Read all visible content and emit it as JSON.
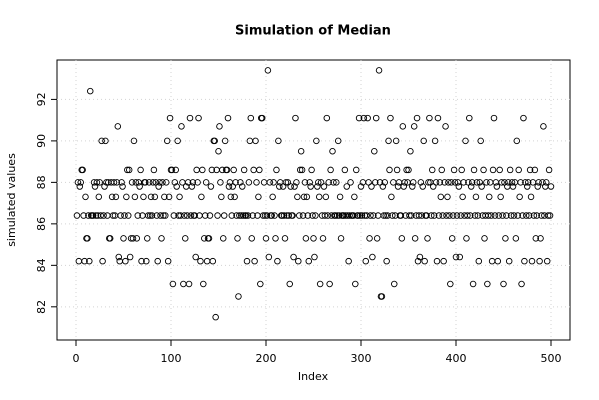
{
  "chart_data": {
    "type": "scatter",
    "title": "Simulation of Median",
    "x_label": "Index",
    "y_label": "simulated values",
    "color": "#000000",
    "grid": true,
    "xlim": [
      -20,
      520
    ],
    "xticks": [
      0,
      100,
      200,
      300,
      400,
      500
    ],
    "ylim": [
      80.4,
      93.9
    ],
    "yticks": [
      82,
      84,
      86,
      88,
      90,
      92
    ],
    "x": [
      1,
      2,
      3,
      4,
      5,
      6,
      7,
      8,
      9,
      10,
      11,
      12,
      13,
      14,
      15,
      16,
      17,
      18,
      19,
      20,
      21,
      22,
      23,
      24,
      25,
      26,
      27,
      28,
      29,
      30,
      31,
      32,
      33,
      34,
      35,
      36,
      37,
      38,
      39,
      40,
      41,
      42,
      43,
      44,
      45,
      46,
      47,
      48,
      49,
      50,
      51,
      52,
      53,
      54,
      55,
      56,
      57,
      58,
      59,
      60,
      61,
      62,
      63,
      64,
      65,
      66,
      67,
      68,
      69,
      70,
      71,
      72,
      73,
      74,
      75,
      76,
      77,
      78,
      79,
      80,
      81,
      82,
      83,
      84,
      85,
      86,
      87,
      88,
      89,
      90,
      91,
      92,
      93,
      94,
      95,
      96,
      97,
      98,
      99,
      100,
      101,
      102,
      103,
      104,
      105,
      106,
      107,
      108,
      109,
      110,
      111,
      112,
      113,
      114,
      115,
      116,
      117,
      118,
      119,
      120,
      121,
      122,
      123,
      124,
      125,
      126,
      127,
      128,
      129,
      130,
      131,
      132,
      133,
      134,
      135,
      136,
      137,
      138,
      139,
      140,
      141,
      142,
      143,
      144,
      145,
      146,
      147,
      148,
      149,
      150,
      151,
      152,
      153,
      154,
      155,
      156,
      157,
      158,
      159,
      160,
      161,
      162,
      163,
      164,
      165,
      166,
      167,
      168,
      169,
      170,
      171,
      172,
      173,
      174,
      175,
      176,
      177,
      178,
      179,
      180,
      181,
      182,
      183,
      184,
      185,
      186,
      187,
      188,
      189,
      190,
      191,
      192,
      193,
      194,
      195,
      196,
      197,
      198,
      199,
      200,
      201,
      202,
      203,
      204,
      205,
      206,
      207,
      208,
      209,
      210,
      211,
      212,
      213,
      214,
      215,
      216,
      217,
      218,
      219,
      220,
      221,
      222,
      223,
      224,
      225,
      226,
      227,
      228,
      229,
      230,
      231,
      232,
      233,
      234,
      235,
      236,
      237,
      238,
      239,
      240,
      241,
      242,
      243,
      244,
      245,
      246,
      247,
      248,
      249,
      250,
      251,
      252,
      253,
      254,
      255,
      256,
      257,
      258,
      259,
      260,
      261,
      262,
      263,
      264,
      265,
      266,
      267,
      268,
      269,
      270,
      271,
      272,
      273,
      274,
      275,
      276,
      277,
      278,
      279,
      280,
      281,
      282,
      283,
      284,
      285,
      286,
      287,
      288,
      289,
      290,
      291,
      292,
      293,
      294,
      295,
      296,
      297,
      298,
      299,
      300,
      301,
      302,
      303,
      304,
      305,
      306,
      307,
      308,
      309,
      310,
      311,
      312,
      313,
      314,
      315,
      316,
      317,
      318,
      319,
      320,
      321,
      322,
      323,
      324,
      325,
      326,
      327,
      328,
      329,
      330,
      331,
      332,
      333,
      334,
      335,
      336,
      337,
      338,
      339,
      340,
      341,
      342,
      343,
      344,
      345,
      346,
      347,
      348,
      349,
      350,
      351,
      352,
      353,
      354,
      355,
      356,
      357,
      358,
      359,
      360,
      361,
      362,
      363,
      364,
      365,
      366,
      367,
      368,
      369,
      370,
      371,
      372,
      373,
      374,
      375,
      376,
      377,
      378,
      379,
      380,
      381,
      382,
      383,
      384,
      385,
      386,
      387,
      388,
      389,
      390,
      391,
      392,
      393,
      394,
      395,
      396,
      397,
      398,
      399,
      400,
      401,
      402,
      403,
      404,
      405,
      406,
      407,
      408,
      409,
      410,
      411,
      412,
      413,
      414,
      415,
      416,
      417,
      418,
      419,
      420,
      421,
      422,
      423,
      424,
      425,
      426,
      427,
      428,
      429,
      430,
      431,
      432,
      433,
      434,
      435,
      436,
      437,
      438,
      439,
      440,
      441,
      442,
      443,
      444,
      445,
      446,
      447,
      448,
      449,
      450,
      451,
      452,
      453,
      454,
      455,
      456,
      457,
      458,
      459,
      460,
      461,
      462,
      463,
      464,
      465,
      466,
      467,
      468,
      469,
      470,
      471,
      472,
      473,
      474,
      475,
      476,
      477,
      478,
      479,
      480,
      481,
      482,
      483,
      484,
      485,
      486,
      487,
      488,
      489,
      490,
      491,
      492,
      493,
      494,
      495,
      496,
      497,
      498,
      499,
      500
    ],
    "values": [
      86.4,
      88.0,
      84.2,
      87.8,
      88.0,
      88.6,
      88.6,
      86.4,
      84.2,
      87.3,
      85.3,
      85.3,
      86.4,
      84.2,
      92.4,
      86.4,
      86.4,
      86.4,
      88.0,
      87.8,
      86.4,
      88.0,
      86.4,
      87.3,
      88.0,
      86.4,
      90.0,
      84.2,
      86.4,
      87.8,
      90.0,
      88.0,
      86.4,
      88.0,
      85.3,
      85.3,
      88.0,
      87.3,
      86.4,
      88.0,
      86.4,
      87.3,
      88.0,
      90.7,
      84.4,
      84.2,
      86.4,
      88.0,
      87.8,
      85.3,
      86.4,
      84.2,
      87.3,
      88.6,
      86.4,
      88.6,
      84.4,
      85.3,
      88.0,
      85.3,
      90.0,
      87.3,
      88.0,
      85.3,
      86.4,
      88.0,
      87.8,
      88.6,
      84.2,
      86.4,
      87.3,
      88.0,
      88.0,
      84.2,
      85.3,
      86.4,
      88.0,
      86.4,
      87.3,
      86.4,
      88.0,
      88.6,
      87.3,
      88.0,
      86.4,
      84.2,
      87.8,
      88.0,
      86.4,
      85.3,
      88.0,
      86.4,
      87.3,
      86.4,
      88.0,
      90.0,
      84.2,
      87.3,
      91.1,
      88.6,
      88.6,
      83.1,
      86.4,
      88.0,
      88.6,
      87.8,
      90.0,
      86.4,
      87.3,
      86.4,
      90.7,
      88.0,
      83.1,
      86.4,
      85.3,
      87.8,
      86.4,
      88.0,
      83.1,
      91.1,
      86.4,
      87.8,
      88.0,
      86.4,
      86.4,
      84.4,
      88.6,
      88.0,
      91.1,
      86.4,
      84.2,
      87.3,
      88.6,
      83.1,
      85.3,
      86.4,
      88.0,
      84.2,
      85.3,
      85.3,
      86.4,
      87.8,
      88.6,
      84.2,
      90.0,
      90.0,
      81.5,
      88.6,
      86.4,
      89.5,
      90.7,
      88.0,
      87.3,
      88.6,
      85.3,
      86.4,
      90.0,
      88.6,
      88.6,
      91.1,
      87.8,
      88.0,
      87.3,
      86.4,
      87.8,
      88.6,
      87.3,
      88.0,
      86.4,
      85.3,
      82.5,
      86.4,
      88.0,
      86.4,
      87.8,
      86.4,
      88.6,
      86.4,
      86.4,
      84.2,
      86.4,
      88.0,
      90.0,
      91.1,
      85.3,
      86.4,
      88.6,
      84.2,
      90.0,
      88.0,
      86.4,
      87.3,
      88.6,
      83.1,
      91.1,
      91.1,
      86.4,
      88.0,
      86.4,
      85.3,
      86.4,
      93.4,
      84.4,
      88.0,
      86.4,
      86.4,
      87.3,
      88.0,
      86.4,
      85.3,
      88.6,
      84.2,
      90.0,
      87.8,
      88.0,
      86.4,
      86.4,
      87.8,
      86.4,
      85.3,
      88.0,
      86.4,
      88.0,
      86.4,
      83.1,
      87.8,
      86.4,
      86.4,
      84.4,
      87.8,
      91.1,
      88.0,
      87.3,
      84.2,
      86.4,
      88.6,
      89.5,
      88.6,
      86.4,
      87.3,
      88.0,
      85.3,
      87.3,
      86.4,
      84.2,
      88.0,
      87.8,
      88.6,
      86.4,
      85.3,
      84.4,
      86.4,
      90.0,
      87.8,
      88.0,
      87.3,
      83.1,
      88.0,
      86.4,
      85.3,
      87.8,
      86.4,
      87.3,
      91.1,
      86.4,
      88.0,
      83.1,
      88.6,
      86.4,
      89.5,
      88.0,
      86.4,
      86.4,
      88.0,
      86.4,
      90.0,
      86.4,
      87.3,
      85.3,
      86.4,
      86.4,
      86.4,
      88.6,
      86.4,
      87.8,
      86.4,
      84.2,
      86.4,
      88.0,
      86.4,
      86.4,
      86.4,
      87.3,
      83.1,
      88.6,
      86.4,
      86.4,
      91.1,
      86.4,
      87.8,
      86.4,
      88.0,
      91.1,
      86.4,
      84.2,
      86.4,
      91.1,
      88.0,
      85.3,
      86.4,
      87.8,
      84.4,
      86.4,
      89.5,
      88.0,
      91.1,
      85.3,
      86.4,
      93.4,
      88.0,
      82.5,
      82.5,
      87.8,
      86.4,
      88.0,
      86.4,
      84.2,
      86.4,
      90.0,
      88.6,
      91.1,
      87.3,
      86.4,
      88.0,
      83.1,
      86.4,
      90.0,
      88.6,
      87.8,
      88.0,
      86.4,
      86.4,
      85.3,
      90.7,
      87.8,
      88.0,
      86.4,
      88.6,
      88.0,
      88.6,
      86.4,
      89.5,
      86.4,
      87.8,
      88.0,
      90.7,
      85.3,
      86.4,
      91.1,
      84.2,
      86.4,
      84.4,
      88.0,
      86.4,
      87.8,
      90.0,
      84.2,
      86.4,
      86.4,
      85.3,
      88.0,
      91.1,
      88.0,
      86.4,
      88.6,
      87.8,
      86.4,
      90.0,
      88.0,
      84.2,
      91.1,
      86.4,
      88.0,
      87.3,
      88.6,
      86.4,
      84.2,
      88.0,
      90.7,
      86.4,
      87.3,
      88.0,
      86.4,
      83.1,
      88.0,
      85.3,
      86.4,
      88.6,
      88.0,
      84.4,
      86.4,
      88.0,
      87.8,
      84.4,
      86.4,
      88.6,
      87.3,
      88.0,
      86.4,
      90.0,
      85.3,
      86.4,
      88.0,
      91.1,
      86.4,
      87.8,
      88.0,
      83.1,
      88.6,
      86.4,
      87.3,
      88.0,
      86.4,
      84.2,
      88.0,
      90.0,
      87.8,
      86.4,
      88.6,
      85.3,
      86.4,
      88.0,
      83.1,
      86.4,
      87.3,
      88.0,
      86.4,
      84.2,
      88.6,
      91.1,
      86.4,
      88.0,
      87.8,
      84.2,
      86.4,
      88.6,
      87.3,
      88.0,
      86.4,
      83.1,
      88.0,
      85.3,
      86.4,
      87.8,
      88.0,
      84.2,
      88.6,
      86.4,
      88.0,
      87.8,
      86.4,
      88.0,
      85.3,
      90.0,
      86.4,
      88.6,
      87.3,
      88.0,
      83.1,
      86.4,
      91.1,
      84.2,
      88.0,
      86.4,
      87.8,
      88.0,
      86.4,
      88.6,
      87.3,
      84.2,
      88.0,
      86.4,
      88.6,
      85.3,
      86.4,
      87.8,
      88.0,
      84.2,
      85.3,
      86.4,
      88.0,
      90.7,
      86.4,
      87.8,
      88.0,
      84.2,
      86.4,
      88.6,
      86.4,
      87.8
    ]
  }
}
